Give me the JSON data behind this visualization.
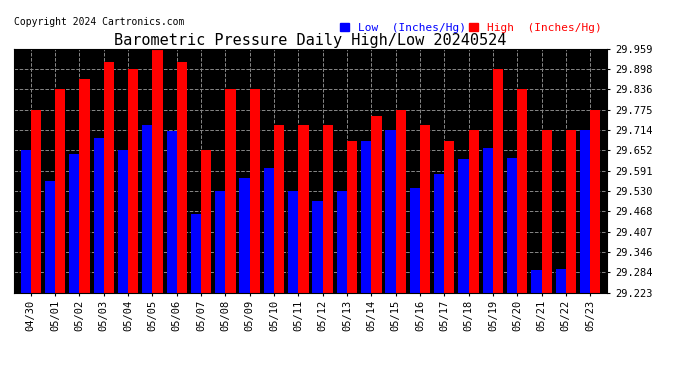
{
  "title": "Barometric Pressure Daily High/Low 20240524",
  "copyright": "Copyright 2024 Cartronics.com",
  "legend_low": "Low  (Inches/Hg)",
  "legend_high": "High  (Inches/Hg)",
  "ylim": [
    29.223,
    29.959
  ],
  "yticks": [
    29.223,
    29.284,
    29.346,
    29.407,
    29.468,
    29.53,
    29.591,
    29.652,
    29.714,
    29.775,
    29.836,
    29.898,
    29.959
  ],
  "background_color": "#000000",
  "plot_bg_color": "#000000",
  "bar_color_low": "#0000ff",
  "bar_color_high": "#ff0000",
  "grid_color": "#888888",
  "title_color": "#000000",
  "fig_bg_color": "#ffffff",
  "categories": [
    "04/30",
    "05/01",
    "05/02",
    "05/03",
    "05/04",
    "05/05",
    "05/06",
    "05/07",
    "05/08",
    "05/09",
    "05/10",
    "05/11",
    "05/12",
    "05/13",
    "05/14",
    "05/15",
    "05/16",
    "05/17",
    "05/18",
    "05/19",
    "05/20",
    "05/21",
    "05/22",
    "05/23"
  ],
  "high_values": [
    29.775,
    29.836,
    29.867,
    29.92,
    29.898,
    29.959,
    29.92,
    29.652,
    29.836,
    29.836,
    29.73,
    29.73,
    29.73,
    29.68,
    29.755,
    29.775,
    29.73,
    29.68,
    29.714,
    29.898,
    29.836,
    29.714,
    29.714,
    29.775
  ],
  "low_values": [
    29.652,
    29.56,
    29.64,
    29.69,
    29.652,
    29.73,
    29.71,
    29.46,
    29.53,
    29.57,
    29.6,
    29.53,
    29.5,
    29.53,
    29.68,
    29.714,
    29.54,
    29.58,
    29.625,
    29.66,
    29.63,
    29.29,
    29.295,
    29.714
  ],
  "title_fontsize": 11,
  "tick_fontsize": 7.5,
  "legend_fontsize": 8,
  "copyright_fontsize": 7
}
